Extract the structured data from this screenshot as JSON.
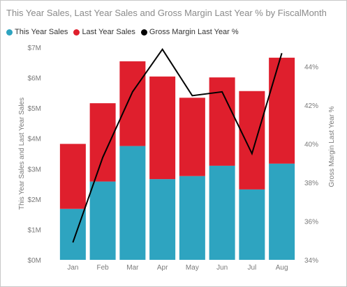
{
  "title": "This Year Sales, Last Year Sales and Gross Margin Last Year % by FiscalMonth",
  "legend": [
    {
      "label": "This Year Sales",
      "color": "#2ea4c0"
    },
    {
      "label": "Last Year Sales",
      "color": "#df1f2d"
    },
    {
      "label": "Gross Margin Last Year %",
      "color": "#000000"
    }
  ],
  "chart_data": {
    "type": "bar",
    "stacked": true,
    "categories": [
      "Jan",
      "Feb",
      "Mar",
      "Apr",
      "May",
      "Jun",
      "Jul",
      "Aug"
    ],
    "series": [
      {
        "name": "This Year Sales",
        "axis": "left",
        "color": "#2ea4c0",
        "values": [
          1.68,
          2.58,
          3.75,
          2.66,
          2.76,
          3.1,
          2.32,
          3.17
        ]
      },
      {
        "name": "Last Year Sales",
        "axis": "left",
        "color": "#df1f2d",
        "values": [
          2.14,
          2.58,
          2.79,
          3.38,
          2.58,
          2.91,
          3.24,
          3.49
        ]
      },
      {
        "name": "Gross Margin Last Year %",
        "axis": "right",
        "type": "line",
        "color": "#000000",
        "values": [
          34.9,
          39.3,
          42.7,
          44.9,
          42.5,
          42.7,
          39.5,
          44.7
        ]
      }
    ],
    "ylabel": "This Year Sales and Last Year Sales",
    "y2label": "Gross Margin Last Year %",
    "ylim": [
      0,
      7
    ],
    "y2lim": [
      34,
      45
    ],
    "yticks": [
      "$0M",
      "$1M",
      "$2M",
      "$3M",
      "$4M",
      "$5M",
      "$6M",
      "$7M"
    ],
    "y2ticks": [
      "34%",
      "36%",
      "38%",
      "40%",
      "42%",
      "44%"
    ],
    "grid": false,
    "legend_position": "top-left"
  }
}
